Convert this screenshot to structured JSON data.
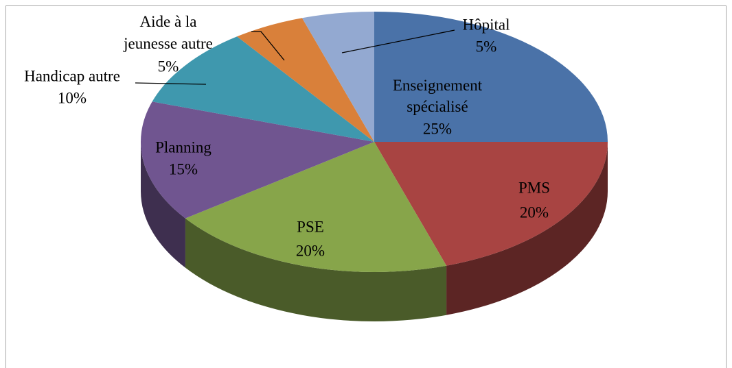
{
  "chart_data": {
    "type": "pie",
    "categories": [
      "Enseignement spécialisé",
      "PMS",
      "PSE",
      "Planning",
      "Handicap autre",
      "Aide à la jeunesse autre",
      "Hôpital"
    ],
    "values": [
      25,
      20,
      20,
      15,
      10,
      5,
      5
    ],
    "value_labels": [
      "25%",
      "20%",
      "20%",
      "15%",
      "10%",
      "5%",
      "5%"
    ],
    "colors": [
      "#4a72a8",
      "#a84442",
      "#87a54a",
      "#705590",
      "#3f98ae",
      "#d9803a",
      "#93a9d1"
    ]
  }
}
